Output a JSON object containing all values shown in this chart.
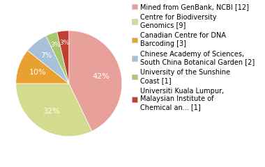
{
  "labels": [
    "Mined from GenBank, NCBI [12]",
    "Centre for Biodiversity\nGenomics [9]",
    "Canadian Centre for DNA\nBarcoding [3]",
    "Chinese Academy of Sciences,\nSouth China Botanical Garden [2]",
    "University of the Sunshine\nCoast [1]",
    "Universiti Kuala Lumpur,\nMalaysian Institute of\nChemical an... [1]"
  ],
  "values": [
    12,
    9,
    3,
    2,
    1,
    1
  ],
  "colors": [
    "#e8a09a",
    "#d4db8e",
    "#e8a030",
    "#a8c0d8",
    "#a8c870",
    "#c04030"
  ],
  "pct_labels": [
    "42%",
    "32%",
    "10%",
    "7%",
    "3%",
    "3%"
  ],
  "legend_fontsize": 7.0,
  "pct_fontsize": 8.0,
  "background_color": "#ffffff"
}
